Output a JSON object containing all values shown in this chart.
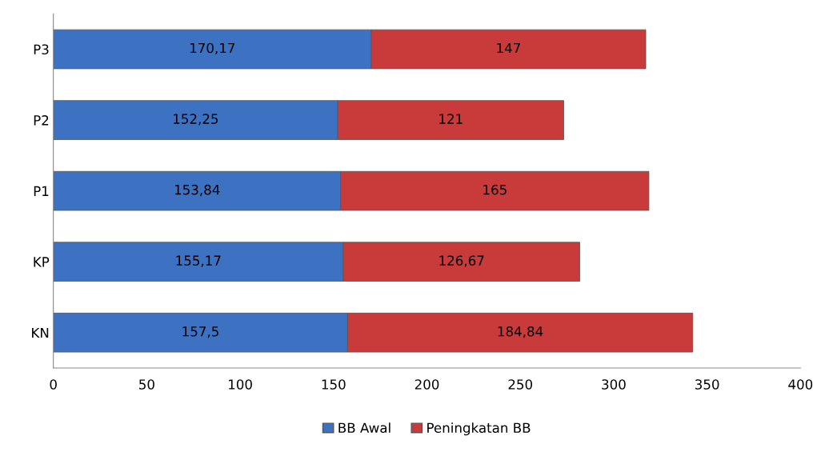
{
  "chart_data": {
    "type": "bar",
    "orientation": "horizontal",
    "stacked": true,
    "categories": [
      "P3",
      "P2",
      "P1",
      "KP",
      "KN"
    ],
    "series": [
      {
        "name": "BB Awal",
        "color": "#3d72c2",
        "values": [
          170.17,
          152.25,
          153.84,
          155.17,
          157.5
        ],
        "value_labels": [
          "170,17",
          "152,25",
          "153,84",
          "155,17",
          "157,5"
        ]
      },
      {
        "name": "Peningkatan BB",
        "color": "#c93a3a",
        "values": [
          147,
          121,
          165,
          126.67,
          184.84
        ],
        "value_labels": [
          "147",
          "121",
          "165",
          "126,67",
          "184,84"
        ]
      }
    ],
    "xlim": [
      0,
      400
    ],
    "xticks": [
      0,
      50,
      100,
      150,
      200,
      250,
      300,
      350,
      400
    ],
    "grid": false,
    "legend": "bottom"
  }
}
